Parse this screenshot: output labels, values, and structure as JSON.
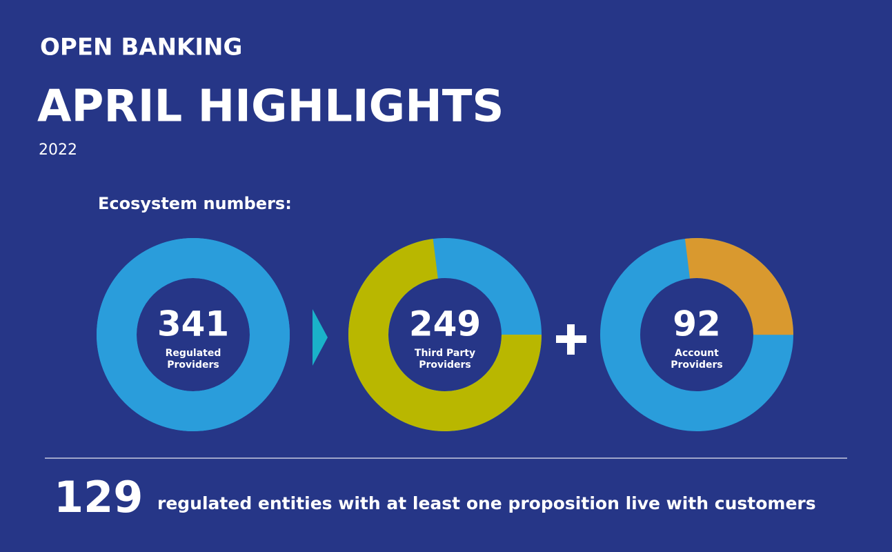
{
  "header": {
    "kicker": "OPEN BANKING",
    "title": "APRIL HIGHLIGHTS",
    "year": "2022"
  },
  "section_title": "Ecosystem numbers:",
  "ring_color": "#2a9ddb",
  "donuts": [
    {
      "value": 341,
      "label": [
        "Regulated",
        "Providers"
      ],
      "color": "#2a9ddb",
      "number_color": "#ffffff"
    },
    {
      "value": 249,
      "label": [
        "Third Party",
        "Providers"
      ],
      "color": "#b9b700",
      "number_color": "#b9b700"
    },
    {
      "value": 92,
      "label": [
        "Account",
        "Providers"
      ],
      "color": "#d9992f",
      "number_color": "#d9992f"
    }
  ],
  "footer": {
    "value": 129,
    "text": "regulated entities with at least one proposition live with customers"
  }
}
